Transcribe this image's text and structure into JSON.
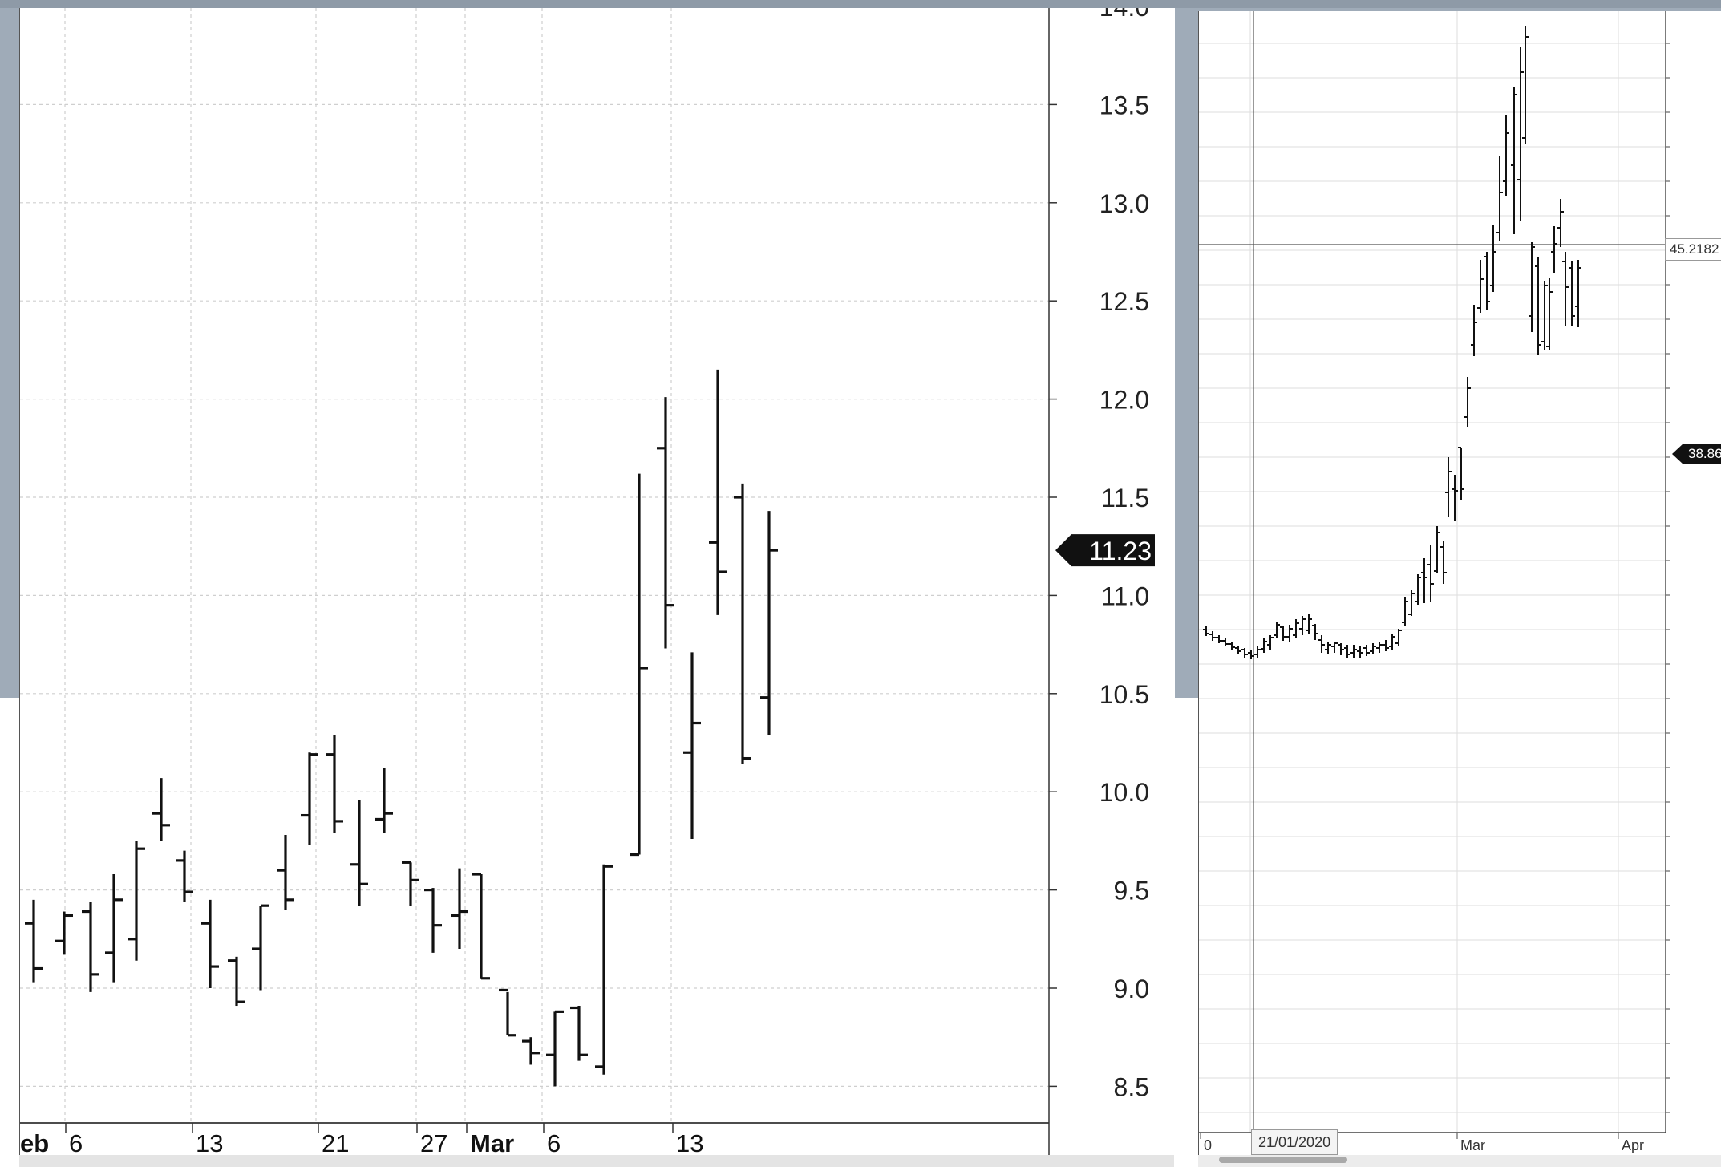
{
  "chart_data": [
    {
      "type": "ohlc",
      "ylim": [
        8.2,
        14.0
      ],
      "y_ticks": [
        "14.0",
        "13.5",
        "13.0",
        "12.5",
        "12.0",
        "11.5",
        "11.0",
        "10.5",
        "10.0",
        "9.5",
        "9.0",
        "8.5"
      ],
      "x_ticks": [
        "eb",
        "6",
        "13",
        "21",
        "27",
        "Mar",
        "6",
        "13"
      ],
      "last_price_label": "11.23",
      "grid": true,
      "bars": [
        {
          "o": 9.33,
          "h": 9.45,
          "l": 9.03,
          "c": 9.1
        },
        {
          "o": 9.24,
          "h": 9.39,
          "l": 9.17,
          "c": 9.37
        },
        {
          "o": 9.39,
          "h": 9.44,
          "l": 8.98,
          "c": 9.07
        },
        {
          "o": 9.18,
          "h": 9.58,
          "l": 9.03,
          "c": 9.45
        },
        {
          "o": 9.25,
          "h": 9.75,
          "l": 9.14,
          "c": 9.71
        },
        {
          "o": 9.89,
          "h": 10.07,
          "l": 9.75,
          "c": 9.83
        },
        {
          "o": 9.65,
          "h": 9.7,
          "l": 9.44,
          "c": 9.49
        },
        {
          "o": 9.33,
          "h": 9.45,
          "l": 9.0,
          "c": 9.11
        },
        {
          "o": 9.14,
          "h": 9.16,
          "l": 8.91,
          "c": 8.93
        },
        {
          "o": 9.2,
          "h": 9.42,
          "l": 8.99,
          "c": 9.42
        },
        {
          "o": 9.6,
          "h": 9.78,
          "l": 9.4,
          "c": 9.45
        },
        {
          "o": 9.88,
          "h": 10.2,
          "l": 9.73,
          "c": 10.19
        },
        {
          "o": 10.19,
          "h": 10.29,
          "l": 9.79,
          "c": 9.85
        },
        {
          "o": 9.63,
          "h": 9.96,
          "l": 9.42,
          "c": 9.53
        },
        {
          "o": 9.86,
          "h": 10.12,
          "l": 9.79,
          "c": 9.89
        },
        {
          "o": 9.64,
          "h": 9.64,
          "l": 9.42,
          "c": 9.55
        },
        {
          "o": 9.5,
          "h": 9.51,
          "l": 9.18,
          "c": 9.32
        },
        {
          "o": 9.37,
          "h": 9.61,
          "l": 9.2,
          "c": 9.39
        },
        {
          "o": 9.58,
          "h": 9.58,
          "l": 9.05,
          "c": 9.05
        },
        {
          "o": 8.99,
          "h": 8.98,
          "l": 8.76,
          "c": 8.76
        },
        {
          "o": 8.73,
          "h": 8.75,
          "l": 8.61,
          "c": 8.67
        },
        {
          "o": 8.66,
          "h": 8.88,
          "l": 8.5,
          "c": 8.88
        },
        {
          "o": 8.9,
          "h": 8.91,
          "l": 8.63,
          "c": 8.66
        },
        {
          "o": 8.6,
          "h": 9.63,
          "l": 8.56,
          "c": 9.62
        },
        {
          "o": 9.68,
          "h": 11.62,
          "l": 9.68,
          "c": 10.63
        },
        {
          "o": 11.75,
          "h": 12.01,
          "l": 10.73,
          "c": 10.95
        },
        {
          "o": 10.2,
          "h": 10.71,
          "l": 9.76,
          "c": 10.35
        },
        {
          "o": 11.27,
          "h": 12.15,
          "l": 10.9,
          "c": 11.12
        },
        {
          "o": 11.5,
          "h": 11.57,
          "l": 10.14,
          "c": 10.17
        },
        {
          "o": 10.48,
          "h": 11.43,
          "l": 10.29,
          "c": 11.23
        }
      ]
    },
    {
      "type": "ohlc",
      "crosshair_price_label": "45.2182",
      "crosshair_date_label": "21/01/2020",
      "last_price_label": "38.86",
      "x_ticks": [
        "0",
        "Mar",
        "Apr"
      ],
      "grid": true
    }
  ]
}
